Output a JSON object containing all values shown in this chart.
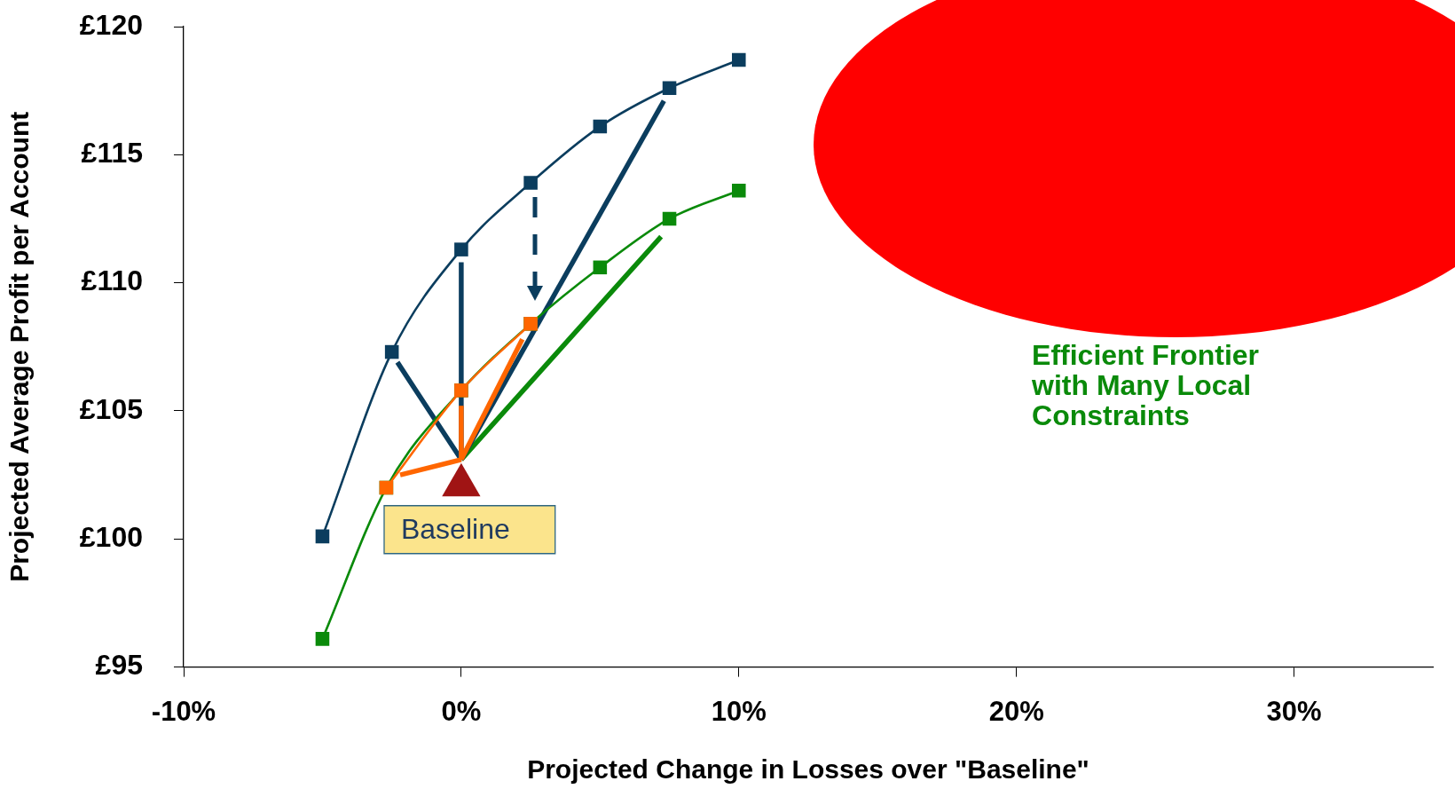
{
  "chart_data": {
    "type": "line",
    "xlabel": "Projected Change in Losses over \"Baseline\"",
    "ylabel": "Projected Average Profit per Account",
    "xlim": [
      -10,
      35
    ],
    "xticks": [
      {
        "value": -10,
        "label": "-10%"
      },
      {
        "value": 0,
        "label": "0%"
      },
      {
        "value": 10,
        "label": "10%"
      },
      {
        "value": 20,
        "label": "20%"
      },
      {
        "value": 30,
        "label": "30%"
      }
    ],
    "ylim": [
      95,
      120
    ],
    "yticks": [
      {
        "value": 95,
        "label": "£95"
      },
      {
        "value": 100,
        "label": "£100"
      },
      {
        "value": 105,
        "label": "£105"
      },
      {
        "value": 110,
        "label": "£110"
      },
      {
        "value": 115,
        "label": "£115"
      },
      {
        "value": 120,
        "label": "£120"
      }
    ],
    "annotations": [
      "Baseline"
    ],
    "series": [
      {
        "color": "#0b3d5e",
        "marker": "square",
        "x": [
          -5,
          -2.5,
          0,
          2.5,
          5,
          7.5,
          10
        ],
        "values": [
          100.1,
          107.3,
          111.3,
          113.9,
          116.1,
          117.6,
          118.7
        ]
      },
      {
        "color": "#ff6600",
        "marker": "square",
        "x": [
          -2.7,
          0,
          2.5
        ],
        "values": [
          102.0,
          105.8,
          108.4
        ]
      },
      {
        "name": "Efficient Frontier with Many Local Constraints",
        "color": "#0a8a0a",
        "marker": "square",
        "x": [
          -5,
          -2.7,
          0,
          2.5,
          5,
          7.5,
          10
        ],
        "values": [
          96.1,
          102.0,
          105.8,
          108.4,
          110.6,
          112.5,
          113.6
        ]
      },
      {
        "type": "scatter",
        "color": "#a01414",
        "marker": "triangle",
        "x": [
          0
        ],
        "values": [
          102.1
        ]
      },
      {
        "color": "#ff6600",
        "marker": "none",
        "x": [
          0,
          -2.2
        ],
        "values": [
          103.1,
          102.5
        ]
      },
      {
        "color": "#ff6600",
        "marker": "none",
        "x": [
          0,
          0
        ],
        "values": [
          103.1,
          105.2
        ]
      },
      {
        "color": "#ff6600",
        "marker": "none",
        "x": [
          0,
          2.2
        ],
        "values": [
          103.1,
          107.8
        ]
      },
      {
        "color": "#0b3d5e",
        "marker": "none",
        "x": [
          0,
          -2.3
        ],
        "values": [
          103.1,
          106.9
        ]
      },
      {
        "color": "#0b3d5e",
        "marker": "none",
        "x": [
          0,
          0
        ],
        "values": [
          103.1,
          110.8
        ]
      },
      {
        "color": "#0b3d5e",
        "marker": "none",
        "x": [
          0,
          7.3
        ],
        "values": [
          103.1,
          117.1
        ]
      },
      {
        "color": "#0a8a0a",
        "marker": "none",
        "x": [
          0,
          7.2
        ],
        "values": [
          103.1,
          111.8
        ]
      }
    ]
  }
}
